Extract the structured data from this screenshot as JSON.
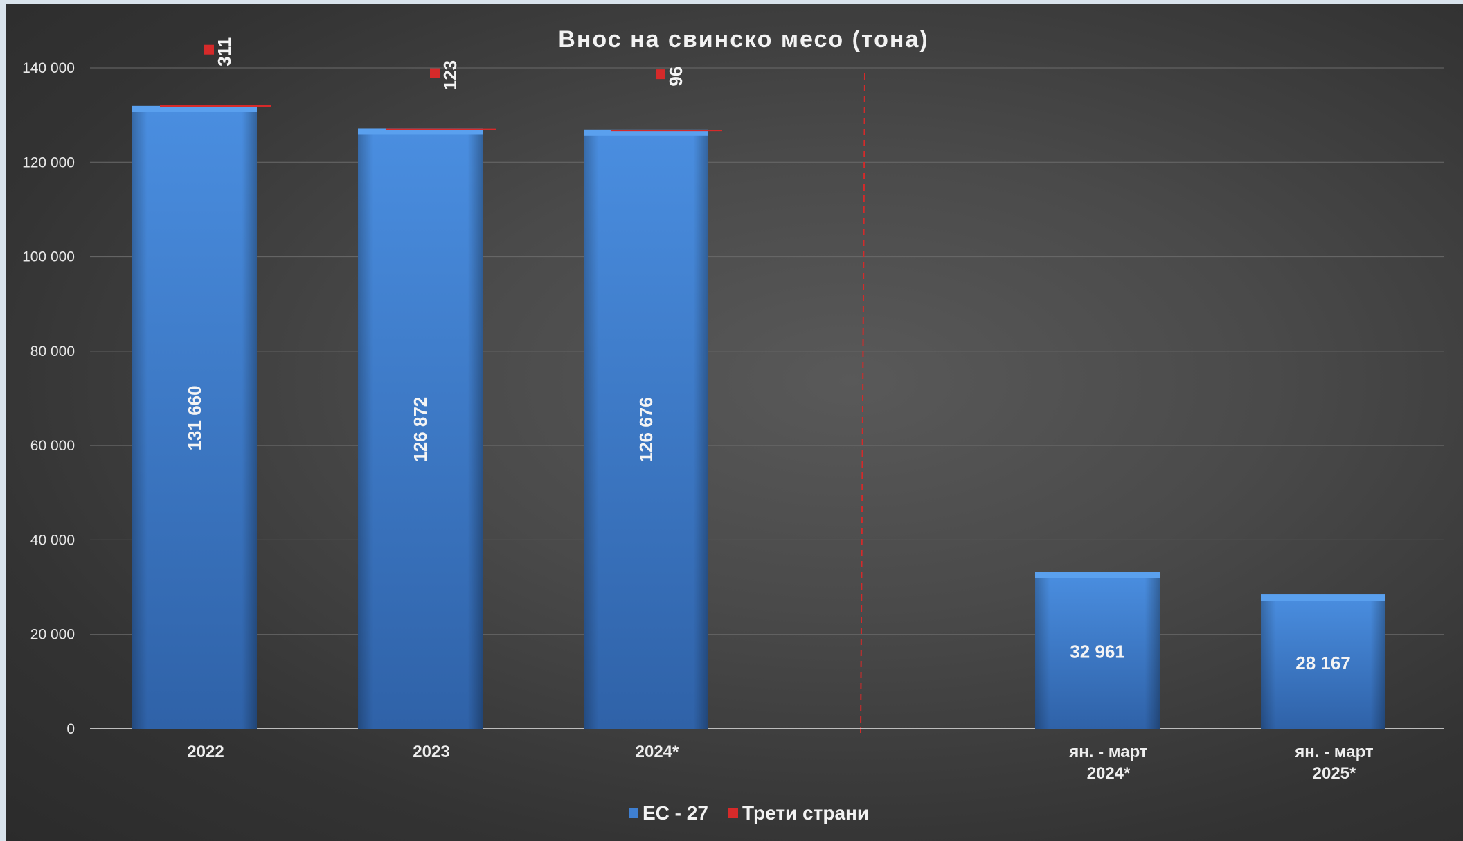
{
  "chart_data": {
    "type": "bar",
    "title": "Внос на свинско месо (тона)",
    "categories": [
      "2022",
      "2023",
      "2024*",
      "",
      "ян. - март\n2024*",
      "ян. - март\n2025*"
    ],
    "series": [
      {
        "name": "ЕС - 27",
        "values": [
          131660,
          126872,
          126676,
          null,
          32961,
          28167
        ],
        "labels": [
          "131 660",
          "126 872",
          "126 676",
          "",
          "32 961",
          "28 167"
        ],
        "color": "#3f7fd0"
      },
      {
        "name": "Трети страни",
        "values": [
          311,
          123,
          96,
          null,
          null,
          null
        ],
        "labels": [
          "311",
          "123",
          "96",
          "",
          "",
          ""
        ],
        "color": "#d62a2a"
      }
    ],
    "ylim": [
      0,
      140000
    ],
    "yticks": [
      0,
      20000,
      40000,
      60000,
      80000,
      100000,
      120000,
      140000
    ],
    "ytick_labels": [
      "0",
      "20 000",
      "40 000",
      "60 000",
      "80 000",
      "100 000",
      "120 000",
      "140 000"
    ],
    "stacked": true,
    "grid": true,
    "legend_position": "bottom",
    "divider": "dashed red vertical line between annual and quarterly periods"
  }
}
